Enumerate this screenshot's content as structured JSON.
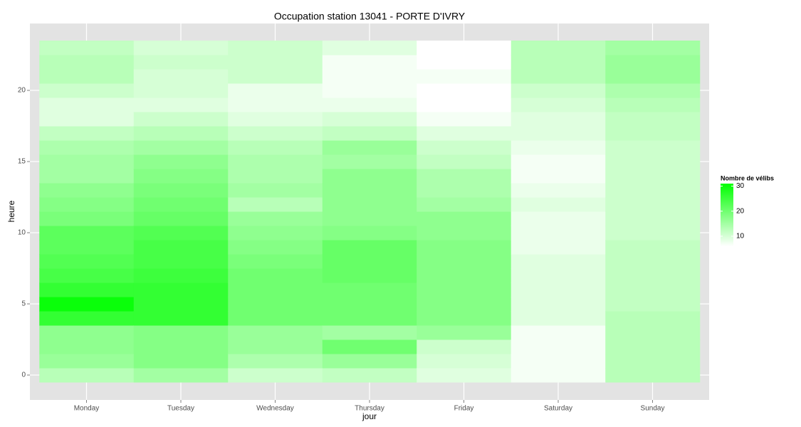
{
  "chart_data": {
    "type": "heatmap",
    "title": "Occupation station 13041 - PORTE D'IVRY",
    "xlabel": "jour",
    "ylabel": "heure",
    "categories": [
      "Monday",
      "Tuesday",
      "Wednesday",
      "Thursday",
      "Friday",
      "Saturday",
      "Sunday"
    ],
    "y": [
      0,
      1,
      2,
      3,
      4,
      5,
      6,
      7,
      8,
      9,
      10,
      11,
      12,
      13,
      14,
      15,
      16,
      17,
      18,
      19,
      20,
      21,
      22,
      23
    ],
    "values": [
      [
        13,
        16,
        17,
        17,
        26,
        30,
        26,
        24,
        23,
        22,
        22,
        19,
        18,
        17,
        15,
        15,
        14,
        12,
        9,
        9,
        11,
        13,
        13,
        12
      ],
      [
        15,
        18,
        18,
        18,
        26,
        26,
        26,
        25,
        24,
        24,
        23,
        21,
        20,
        19,
        18,
        17,
        15,
        13,
        11,
        9,
        10,
        10,
        11,
        10
      ],
      [
        11,
        14,
        16,
        16,
        20,
        20,
        20,
        20,
        19,
        18,
        17,
        16,
        13,
        15,
        14,
        14,
        13,
        11,
        9,
        8,
        8,
        11,
        11,
        11
      ],
      [
        12,
        16,
        20,
        15,
        20,
        20,
        20,
        21,
        21,
        21,
        18,
        17,
        17,
        17,
        17,
        15,
        16,
        12,
        10,
        8,
        7,
        7,
        7,
        9
      ],
      [
        9,
        10,
        11,
        16,
        18,
        18,
        18,
        18,
        18,
        18,
        17,
        17,
        15,
        14,
        14,
        12,
        11,
        9,
        7,
        6,
        6,
        7,
        6,
        6
      ],
      [
        7,
        7,
        7,
        7,
        9,
        9,
        9,
        9,
        9,
        8,
        8,
        8,
        9,
        8,
        7,
        7,
        8,
        9,
        9,
        10,
        11,
        13,
        13,
        13
      ],
      [
        13,
        13,
        13,
        13,
        13,
        12,
        12,
        12,
        12,
        12,
        11,
        11,
        11,
        11,
        11,
        11,
        11,
        12,
        12,
        13,
        14,
        16,
        16,
        15
      ]
    ],
    "ylim": [
      -1.75,
      24.7
    ],
    "yticks": [
      0,
      5,
      10,
      15,
      20
    ],
    "legend_title": "Nombre de vélibs",
    "colorlim": [
      6,
      31
    ],
    "colorticks": [
      10,
      20,
      30
    ],
    "color_low": "#ffffff",
    "color_high": "#00ff00",
    "grid": true
  }
}
